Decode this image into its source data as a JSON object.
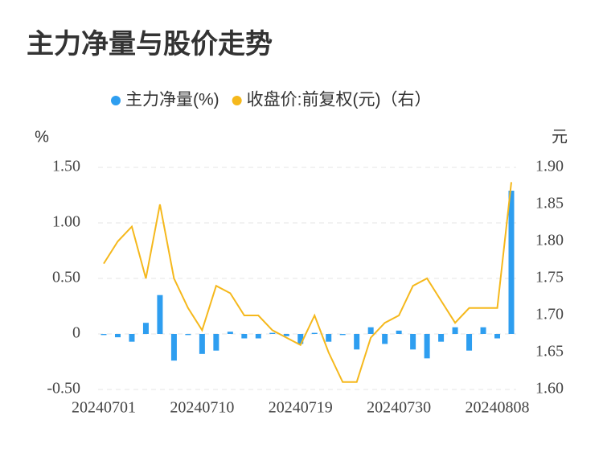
{
  "chart_data": {
    "type": "bar_line",
    "title": "主力净量与股价走势",
    "y_unit": "%",
    "y2_unit": "元",
    "categories": [
      "20240701",
      null,
      null,
      null,
      null,
      null,
      null,
      "20240710",
      null,
      null,
      null,
      null,
      null,
      null,
      "20240719",
      null,
      null,
      null,
      null,
      null,
      null,
      "20240730",
      null,
      null,
      null,
      null,
      null,
      null,
      "20240808",
      null
    ],
    "series": [
      {
        "name": "主力净量(%)",
        "color": "#2e9ef0",
        "type": "bar",
        "values": [
          -0.01,
          -0.03,
          -0.07,
          0.1,
          0.35,
          -0.24,
          -0.01,
          -0.18,
          -0.15,
          0.02,
          -0.04,
          -0.04,
          0.01,
          -0.02,
          -0.09,
          0.01,
          -0.07,
          -0.01,
          -0.14,
          0.06,
          -0.09,
          0.03,
          -0.14,
          -0.22,
          -0.07,
          0.06,
          -0.15,
          0.06,
          -0.04,
          1.29
        ]
      },
      {
        "name": "收盘价:前复权(元)（右）",
        "color": "#f5b81c",
        "type": "line",
        "axis": "y2",
        "values": [
          1.77,
          1.8,
          1.82,
          1.75,
          1.85,
          1.75,
          1.71,
          1.68,
          1.74,
          1.73,
          1.7,
          1.7,
          1.68,
          1.67,
          1.66,
          1.7,
          1.65,
          1.61,
          1.61,
          1.67,
          1.69,
          1.7,
          1.74,
          1.75,
          1.72,
          1.69,
          1.71,
          1.71,
          1.71,
          1.88
        ]
      }
    ],
    "ylim": [
      -0.5,
      1.5
    ],
    "yticks": [
      {
        "value": -0.5,
        "label": "-0.50"
      },
      0,
      {
        "value": 0.5,
        "label": "0.50"
      },
      {
        "value": 1.0,
        "label": "1.00"
      },
      {
        "value": 1.5,
        "label": "1.50"
      }
    ],
    "y2lim": [
      1.6,
      1.9
    ],
    "y2ticks": [
      {
        "value": 1.6,
        "label": "1.60"
      },
      {
        "value": 1.65,
        "label": "1.65"
      },
      {
        "value": 1.7,
        "label": "1.70"
      },
      {
        "value": 1.75,
        "label": "1.75"
      },
      {
        "value": 1.8,
        "label": "1.80"
      },
      {
        "value": 1.85,
        "label": "1.85"
      },
      {
        "value": 1.9,
        "label": "1.90"
      }
    ],
    "grid": true
  }
}
